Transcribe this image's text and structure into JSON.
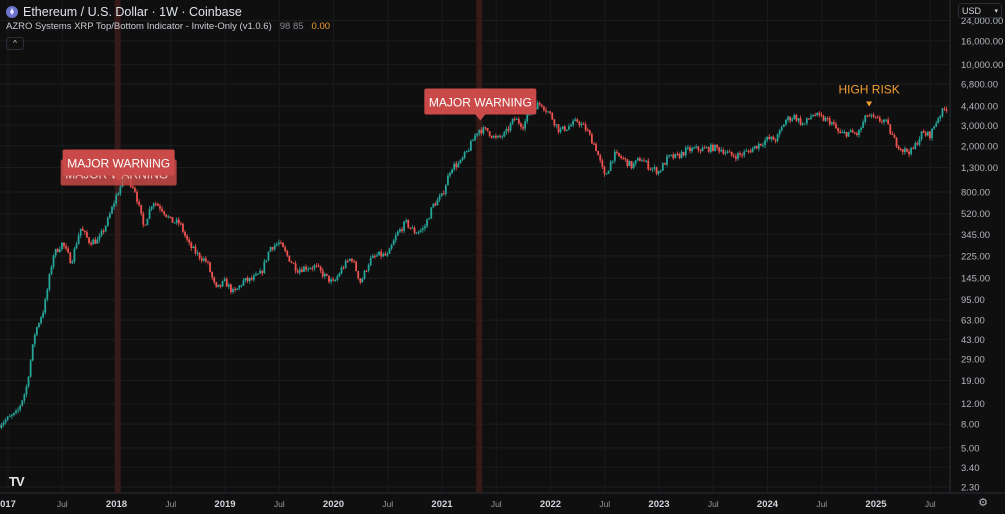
{
  "header": {
    "symbol_title": "Ethereum / U.S. Dollar · 1W · Coinbase",
    "symbol_icon": "ethereum-icon"
  },
  "indicator": {
    "name": "AZRO Systems XRP Top/Bottom Indicator - Invite-Only (v1.0.6)",
    "values_a": "98 85",
    "value_b": "0.00",
    "collapse_icon": "chevron-up-icon"
  },
  "currency": {
    "label": "USD",
    "chevron": "▾"
  },
  "colors": {
    "background": "#0f0f0f",
    "up": "#26a69a",
    "down": "#ef5350",
    "warning_label": "#c94a48",
    "warning_band": "#3a1c1a",
    "high_risk": "#f0a030"
  },
  "chart_data": {
    "type": "candlestick",
    "scale": "log",
    "interval": "1W",
    "ylim": [
      2.3,
      24000
    ],
    "y_ticks": [
      "24,000.00",
      "16,000.00",
      "10,000.00",
      "6,800.00",
      "4,400.00",
      "3,000.00",
      "2,000.00",
      "1,300.00",
      "800.00",
      "520.00",
      "345.00",
      "225.00",
      "145.00",
      "95.00",
      "63.00",
      "43.00",
      "29.00",
      "19.00",
      "12.00",
      "8.00",
      "5.00",
      "3.40",
      "2.30"
    ],
    "x_ticks": [
      "2017",
      "Jul",
      "2018",
      "Jul",
      "2019",
      "Jul",
      "2020",
      "Jul",
      "2021",
      "Jul",
      "2022",
      "Jul",
      "2023",
      "Jul",
      "2024",
      "Jul",
      "2025",
      "Jul"
    ],
    "approx_monthly_close": {
      "2016-12": 8,
      "2017": [
        10,
        16,
        50,
        80,
        230,
        290,
        200,
        390,
        300,
        305,
        445,
        750
      ],
      "2018": [
        1100,
        860,
        400,
        670,
        580,
        450,
        430,
        280,
        230,
        200,
        115,
        135
      ],
      "2019": [
        107,
        136,
        141,
        160,
        268,
        290,
        218,
        172,
        180,
        182,
        152,
        130
      ],
      "2020": [
        180,
        218,
        133,
        206,
        230,
        225,
        345,
        435,
        360,
        386,
        615,
        737
      ],
      "2021": [
        1314,
        1416,
        1918,
        2773,
        2700,
        2275,
        2530,
        3430,
        3000,
        4300,
        4630,
        3680
      ],
      "2022": [
        2690,
        2920,
        3280,
        2730,
        1940,
        1070,
        1680,
        1550,
        1330,
        1570,
        1300,
        1200
      ],
      "2023": [
        1585,
        1605,
        1820,
        1870,
        1870,
        1930,
        1855,
        1645,
        1670,
        1815,
        2050,
        2280
      ],
      "2024": [
        2280,
        3340,
        3600,
        3010,
        3760,
        3440,
        3230,
        2510,
        2600,
        2510,
        3700,
        3330
      ],
      "2025": [
        3300,
        2240,
        1820,
        1795,
        2530,
        2490,
        3700,
        4400
      ]
    },
    "signals": [
      {
        "label": "MAJOR WARNING",
        "date": "2018-01",
        "type": "major",
        "duplicate_label": "MAJOR WARNING"
      },
      {
        "label": "MAJOR WARNING",
        "date": "2021-05",
        "type": "major"
      },
      {
        "label": "HIGH RISK",
        "date": "2024-12",
        "type": "high"
      }
    ]
  },
  "footer": {
    "logo": "TV",
    "settings_icon": "gear-icon"
  }
}
